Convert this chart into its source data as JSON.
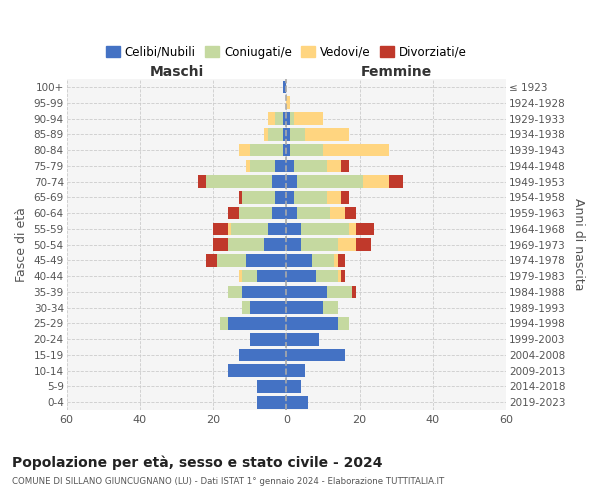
{
  "age_groups": [
    "0-4",
    "5-9",
    "10-14",
    "15-19",
    "20-24",
    "25-29",
    "30-34",
    "35-39",
    "40-44",
    "45-49",
    "50-54",
    "55-59",
    "60-64",
    "65-69",
    "70-74",
    "75-79",
    "80-84",
    "85-89",
    "90-94",
    "95-99",
    "100+"
  ],
  "birth_years": [
    "2019-2023",
    "2014-2018",
    "2009-2013",
    "2004-2008",
    "1999-2003",
    "1994-1998",
    "1989-1993",
    "1984-1988",
    "1979-1983",
    "1974-1978",
    "1969-1973",
    "1964-1968",
    "1959-1963",
    "1954-1958",
    "1949-1953",
    "1944-1948",
    "1939-1943",
    "1934-1938",
    "1929-1933",
    "1924-1928",
    "≤ 1923"
  ],
  "maschi": {
    "celibi": [
      8,
      8,
      16,
      13,
      10,
      16,
      10,
      12,
      8,
      11,
      6,
      5,
      4,
      3,
      4,
      3,
      1,
      1,
      1,
      0,
      1
    ],
    "coniugati": [
      0,
      0,
      0,
      0,
      0,
      2,
      2,
      4,
      4,
      8,
      10,
      10,
      9,
      9,
      18,
      7,
      9,
      4,
      2,
      0,
      0
    ],
    "vedovi": [
      0,
      0,
      0,
      0,
      0,
      0,
      0,
      0,
      1,
      0,
      0,
      1,
      0,
      0,
      0,
      1,
      3,
      1,
      2,
      0,
      0
    ],
    "divorziati": [
      0,
      0,
      0,
      0,
      0,
      0,
      0,
      0,
      0,
      3,
      4,
      4,
      3,
      1,
      2,
      0,
      0,
      0,
      0,
      0,
      0
    ]
  },
  "femmine": {
    "nubili": [
      6,
      4,
      5,
      16,
      9,
      14,
      10,
      11,
      8,
      7,
      4,
      4,
      3,
      2,
      3,
      2,
      1,
      1,
      1,
      0,
      0
    ],
    "coniugate": [
      0,
      0,
      0,
      0,
      0,
      3,
      4,
      7,
      6,
      6,
      10,
      13,
      9,
      9,
      18,
      9,
      9,
      4,
      1,
      0,
      0
    ],
    "vedove": [
      0,
      0,
      0,
      0,
      0,
      0,
      0,
      0,
      1,
      1,
      5,
      2,
      4,
      4,
      7,
      4,
      18,
      12,
      8,
      1,
      0
    ],
    "divorziate": [
      0,
      0,
      0,
      0,
      0,
      0,
      0,
      1,
      1,
      2,
      4,
      5,
      3,
      2,
      4,
      2,
      0,
      0,
      0,
      0,
      0
    ]
  },
  "colors": {
    "celibi_nubili": "#4472C4",
    "coniugati_e": "#C5D9A0",
    "vedovi_e": "#FFD580",
    "divorziati_e": "#C0392B"
  },
  "xlim": 60,
  "title": "Popolazione per età, sesso e stato civile - 2024",
  "subtitle": "COMUNE DI SILLANO GIUNCUGNANO (LU) - Dati ISTAT 1° gennaio 2024 - Elaborazione TUTTITALIA.IT",
  "ylabel_left": "Fasce di età",
  "ylabel_right": "Anni di nascita",
  "label_maschi": "Maschi",
  "label_femmine": "Femmine",
  "legend_labels": [
    "Celibi/Nubili",
    "Coniugati/e",
    "Vedovi/e",
    "Divorziati/e"
  ],
  "bar_height": 0.8,
  "background_color": "#f5f5f5"
}
